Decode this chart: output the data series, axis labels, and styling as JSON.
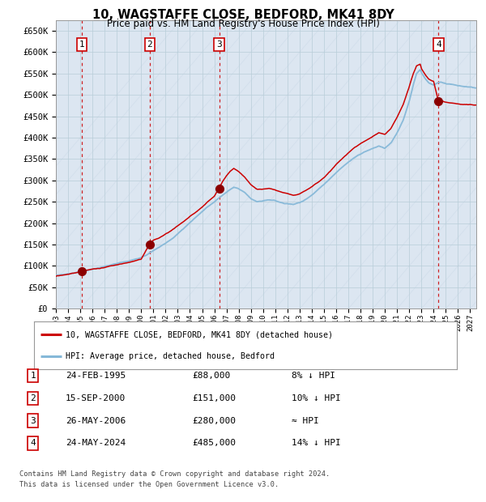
{
  "title1": "10, WAGSTAFFE CLOSE, BEDFORD, MK41 8DY",
  "title2": "Price paid vs. HM Land Registry's House Price Index (HPI)",
  "background_color": "#dce6f1",
  "plot_bg_color": "#dce6f1",
  "hpi_line_color": "#85b8d8",
  "price_line_color": "#cc0000",
  "sale_dot_color": "#8b0000",
  "dashed_vline_color": "#cc0000",
  "ylim": [
    0,
    675000
  ],
  "yticks": [
    0,
    50000,
    100000,
    150000,
    200000,
    250000,
    300000,
    350000,
    400000,
    450000,
    500000,
    550000,
    600000,
    650000
  ],
  "ytick_labels": [
    "£0",
    "£50K",
    "£100K",
    "£150K",
    "£200K",
    "£250K",
    "£300K",
    "£350K",
    "£400K",
    "£450K",
    "£500K",
    "£550K",
    "£600K",
    "£650K"
  ],
  "sales": [
    {
      "num": 1,
      "date_str": "24-FEB-1995",
      "year": 1995.15,
      "price": 88000,
      "label": "8% ↓ HPI"
    },
    {
      "num": 2,
      "date_str": "15-SEP-2000",
      "year": 2000.71,
      "price": 151000,
      "label": "10% ↓ HPI"
    },
    {
      "num": 3,
      "date_str": "26-MAY-2006",
      "year": 2006.4,
      "price": 280000,
      "label": "≈ HPI"
    },
    {
      "num": 4,
      "date_str": "24-MAY-2024",
      "year": 2024.4,
      "price": 485000,
      "label": "14% ↓ HPI"
    }
  ],
  "legend_line1": "10, WAGSTAFFE CLOSE, BEDFORD, MK41 8DY (detached house)",
  "legend_line2": "HPI: Average price, detached house, Bedford",
  "footer1": "Contains HM Land Registry data © Crown copyright and database right 2024.",
  "footer2": "This data is licensed under the Open Government Licence v3.0.",
  "xlim_start": 1993.0,
  "xlim_end": 2027.5,
  "xtick_years": [
    1993,
    1994,
    1995,
    1996,
    1997,
    1998,
    1999,
    2000,
    2001,
    2002,
    2003,
    2004,
    2005,
    2006,
    2007,
    2008,
    2009,
    2010,
    2011,
    2012,
    2013,
    2014,
    2015,
    2016,
    2017,
    2018,
    2019,
    2020,
    2021,
    2022,
    2023,
    2024,
    2025,
    2026,
    2027
  ],
  "table_rows": [
    [
      "1",
      "24-FEB-1995",
      "£88,000",
      "8% ↓ HPI"
    ],
    [
      "2",
      "15-SEP-2000",
      "£151,000",
      "10% ↓ HPI"
    ],
    [
      "3",
      "26-MAY-2006",
      "£280,000",
      "≈ HPI"
    ],
    [
      "4",
      "24-MAY-2024",
      "£485,000",
      "14% ↓ HPI"
    ]
  ]
}
